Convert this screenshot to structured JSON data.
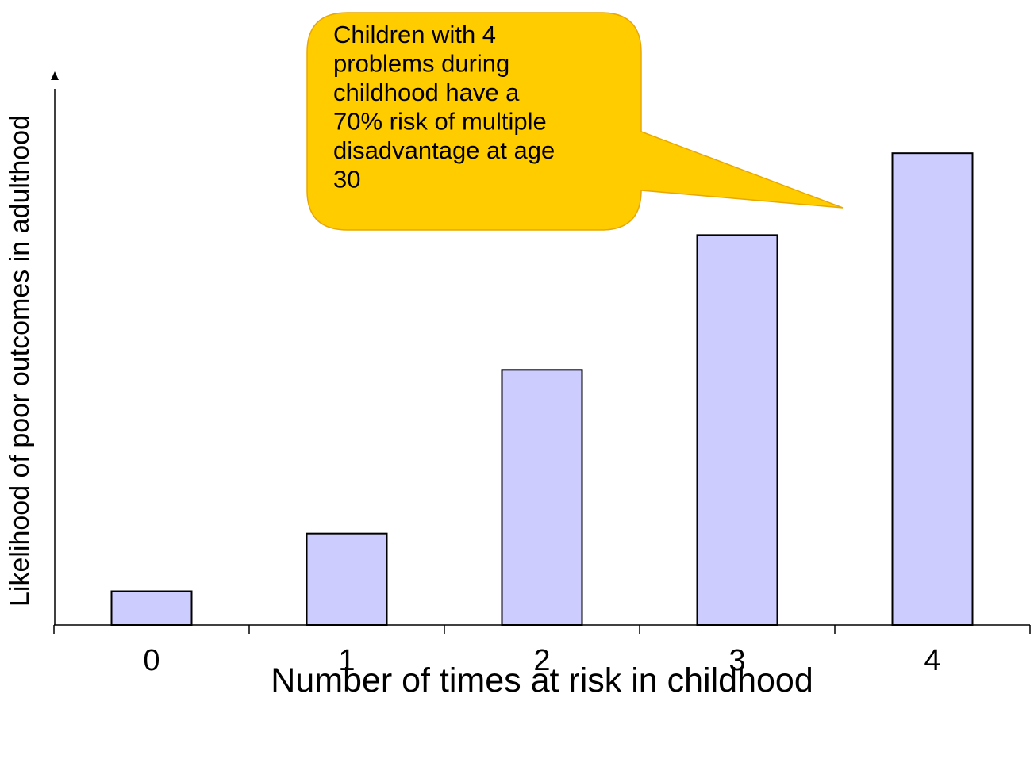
{
  "chart_data": {
    "type": "bar",
    "categories": [
      "0",
      "1",
      "2",
      "3",
      "4"
    ],
    "values": [
      7,
      19,
      53,
      81,
      98
    ],
    "xlabel": "Number of times at risk in childhood",
    "ylabel": "Likelihood of poor outcomes in adulthood",
    "ylim": [
      0,
      115
    ],
    "grid": false,
    "legend": "none",
    "colors": {
      "bar_fill": "#ccccff",
      "bar_stroke": "#000000",
      "axis": "#000000",
      "callout_fill": "#ffcc00",
      "callout_stroke": "#e8a800"
    },
    "annotations": [
      {
        "text_lines": [
          "Children with 4",
          "problems during",
          "childhood have a",
          "70% risk of multiple",
          "disadvantage at age",
          "30"
        ],
        "points_to_category": "4"
      }
    ]
  }
}
